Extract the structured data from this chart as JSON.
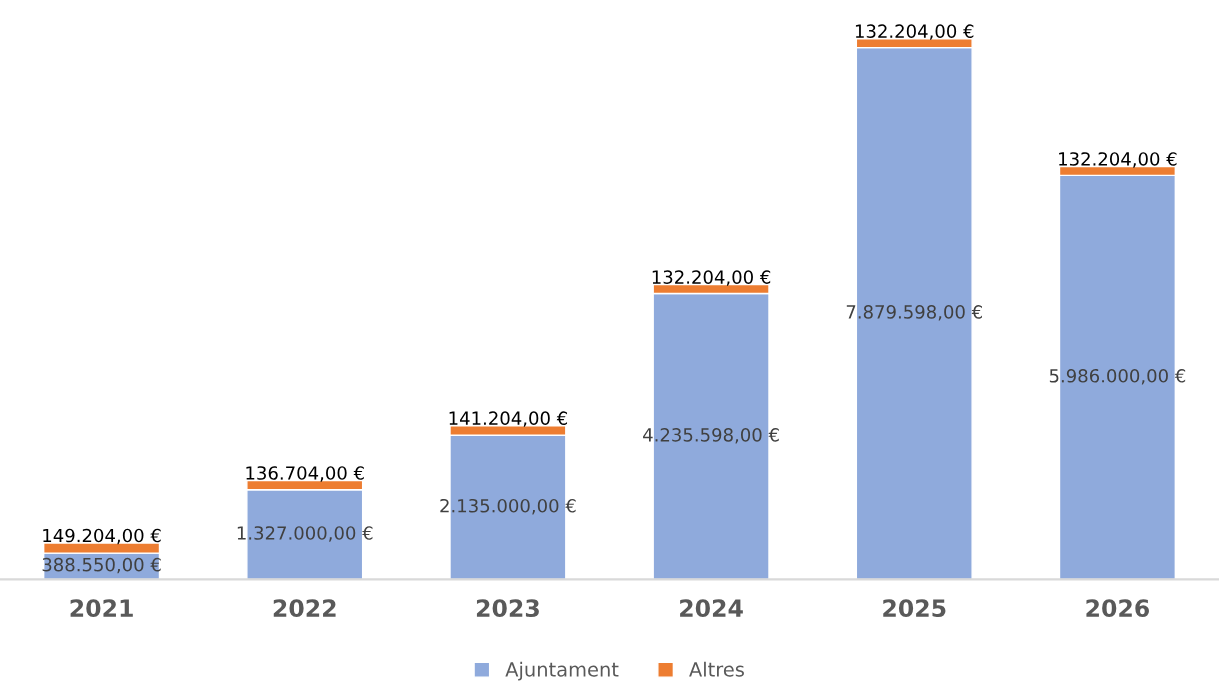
{
  "chart_data": {
    "type": "bar",
    "stacked": true,
    "categories": [
      "2021",
      "2022",
      "2023",
      "2024",
      "2025",
      "2026"
    ],
    "series": [
      {
        "name": "Ajuntament",
        "color": "#8faadc",
        "values": [
          388550,
          1327000,
          2135000,
          4235598,
          7879598,
          5986000
        ],
        "value_labels": [
          "388.550,00 €",
          "1.327.000,00 €",
          "2.135.000,00 €",
          "4.235.598,00 €",
          "7.879.598,00 €",
          "5.986.000,00 €"
        ]
      },
      {
        "name": "Altres",
        "color": "#ed7d31",
        "values": [
          149204,
          136704,
          141204,
          132204,
          132204,
          132204
        ],
        "value_labels": [
          "149.204,00 €",
          "136.704,00 €",
          "141.204,00 €",
          "132.204,00 €",
          "132.204,00 €",
          "132.204,00 €"
        ]
      }
    ],
    "tick_labels": "x",
    "grid": false,
    "legend": "bottom"
  }
}
